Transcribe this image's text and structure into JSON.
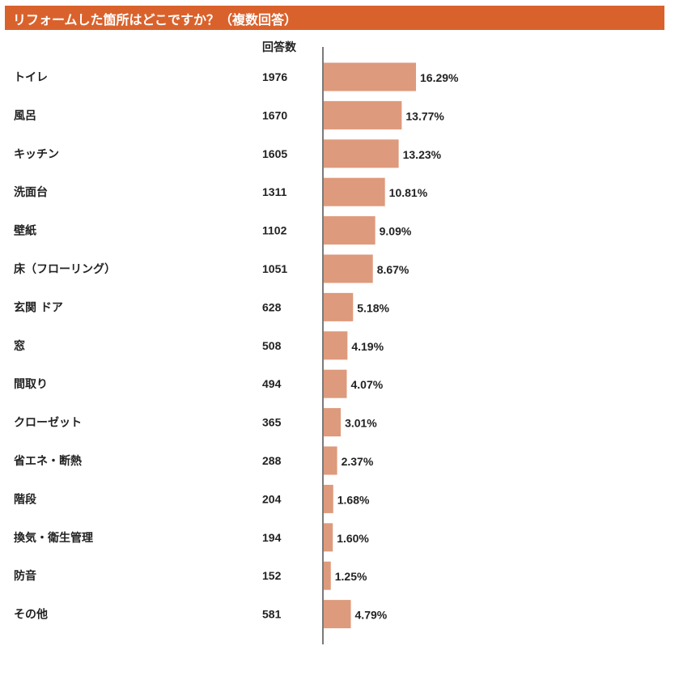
{
  "title": "リフォームした箇所はどこですか？（複数回答）",
  "colors": {
    "title_bg": "#d9622c",
    "title_text": "#ffffff",
    "bar": "#de9a7c",
    "axis": "#222222"
  },
  "chart_data": {
    "type": "bar",
    "orientation": "horizontal",
    "title": "リフォームした箇所はどこですか？（複数回答）",
    "count_header": "回答数",
    "categories": [
      "トイレ",
      "風呂",
      "キッチン",
      "洗面台",
      "壁紙",
      "床（フローリング）",
      "玄関 ドア",
      "窓",
      "間取り",
      "クローゼット",
      "省エネ・断熱",
      "階段",
      "換気・衛生管理",
      "防音",
      "その他"
    ],
    "counts": [
      1976,
      1670,
      1605,
      1311,
      1102,
      1051,
      628,
      508,
      494,
      365,
      288,
      204,
      194,
      152,
      581
    ],
    "values": [
      16.29,
      13.77,
      13.23,
      10.81,
      9.09,
      8.67,
      5.18,
      4.19,
      4.07,
      3.01,
      2.37,
      1.68,
      1.6,
      1.25,
      4.79
    ],
    "value_labels": [
      "16.29%",
      "13.77%",
      "13.23%",
      "10.81%",
      "9.09%",
      "8.67%",
      "5.18%",
      "4.19%",
      "4.07%",
      "3.01%",
      "2.37%",
      "1.68%",
      "1.60%",
      "1.25%",
      "4.79%"
    ],
    "grid": false
  }
}
